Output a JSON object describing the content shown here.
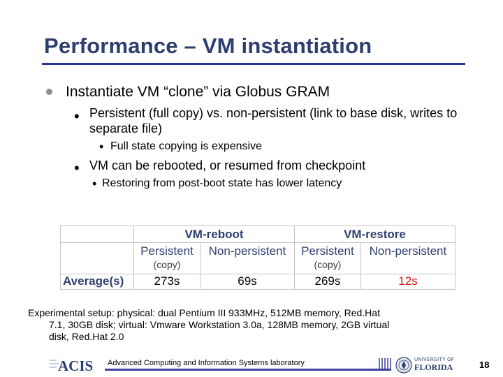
{
  "slide": {
    "title": "Performance – VM instantiation",
    "bullets": {
      "main": "Instantiate VM “clone” via Globus GRAM",
      "sub1": "Persistent (full copy) vs. non-persistent (link to base disk, writes to separate file)",
      "sub1_child": "Full state copying is expensive",
      "sub2": "VM can be rebooted, or resumed from checkpoint",
      "sub2_child": "Restoring from post-boot state has lower latency"
    }
  },
  "table": {
    "groups": [
      "VM-reboot",
      "VM-restore"
    ],
    "columns": [
      "Persistent",
      "Non-persistent",
      "Persistent",
      "Non-persistent"
    ],
    "copy_note": "(copy)",
    "row_label": "Average(s)",
    "values": [
      "273s",
      "69s",
      "269s",
      "12s"
    ],
    "highlight_color": "#d11a1a"
  },
  "setup": {
    "line1": "Experimental setup: physical: dual Pentium III 933MHz, 512MB memory, Red.Hat",
    "line2": "7.1, 30GB disk; virtual: Vmware Workstation 3.0a, 128MB memory, 2GB virtual",
    "line3": "disk, Red.Hat 2.0"
  },
  "footer": {
    "logo_text": "ACIS",
    "lab": "Advanced Computing and Information Systems laboratory",
    "univ_small": "UNIVERSITY OF",
    "univ_big": "FLORIDA",
    "page": "18"
  },
  "colors": {
    "title": "#2e3f6f",
    "rule": "#2b2f9a"
  }
}
